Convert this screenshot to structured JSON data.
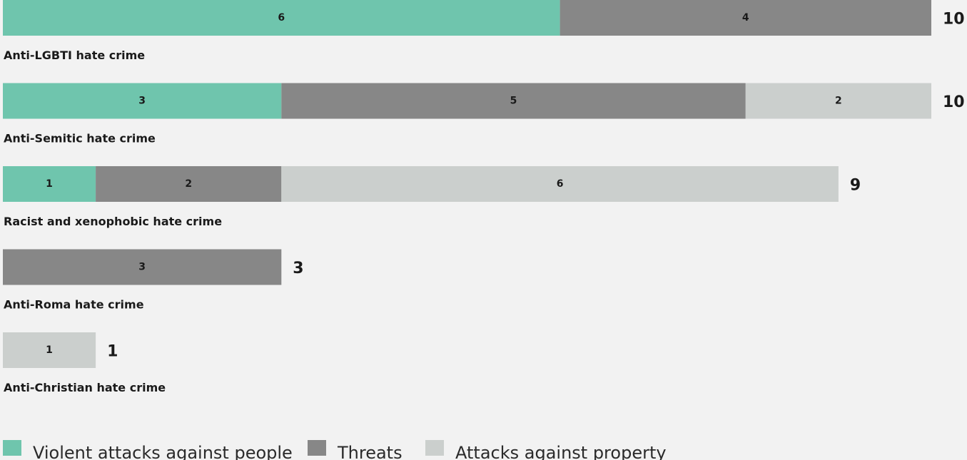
{
  "chart_data": {
    "type": "bar",
    "orientation": "horizontal",
    "stacked": true,
    "categories": [
      "Anti-LGBTI hate crime",
      "Anti-Semitic hate crime",
      "Racist and xenophobic hate crime",
      "Anti-Roma hate crime",
      "Anti-Christian hate crime"
    ],
    "series": [
      {
        "name": "Violent attacks against people",
        "values": [
          6,
          3,
          1,
          0,
          0
        ],
        "color": "#6fc5ad"
      },
      {
        "name": "Threats",
        "values": [
          4,
          5,
          2,
          3,
          0
        ],
        "color": "#878787"
      },
      {
        "name": "Attacks against property",
        "values": [
          0,
          2,
          6,
          0,
          1
        ],
        "color": "#cbcfcd"
      }
    ],
    "totals": [
      10,
      10,
      9,
      3,
      1
    ],
    "xlim": [
      0,
      10
    ],
    "grid": false,
    "legend_position": "bottom-left"
  }
}
